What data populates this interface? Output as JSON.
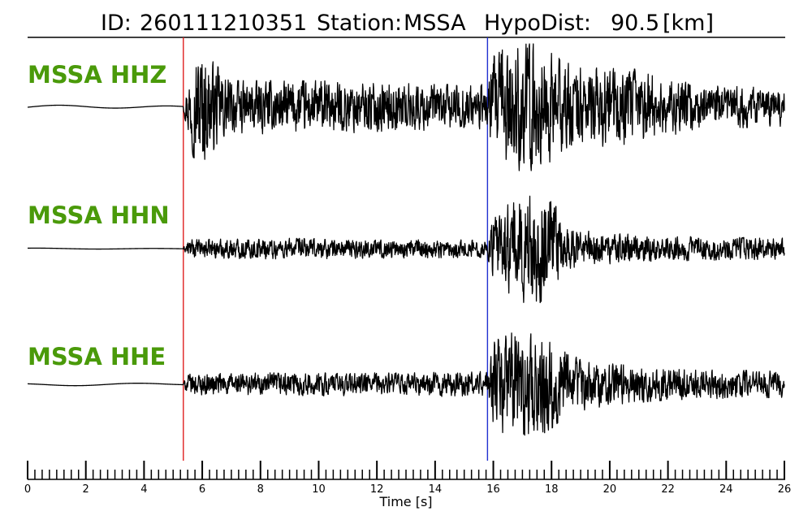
{
  "title": {
    "id_label": "ID:",
    "id_value": "260111210351",
    "station_label": "Station:",
    "station_value": "MSSA",
    "dist_label": "HypoDist:",
    "dist_value": "90.5",
    "dist_unit": "[km]"
  },
  "colors": {
    "channel_label": "#4a9a0a",
    "p_pick": "#e02020",
    "s_pick": "#2030d0",
    "trace": "#000000"
  },
  "chart_data": {
    "type": "line",
    "xlabel": "Time [s]",
    "xlim": [
      0,
      26
    ],
    "x_major_ticks": [
      0,
      2,
      4,
      6,
      8,
      10,
      12,
      14,
      16,
      18,
      20,
      22,
      24,
      26
    ],
    "x_minor_step": 0.25,
    "picks": [
      {
        "phase": "P",
        "time": 5.35
      },
      {
        "phase": "S",
        "time": 15.8
      }
    ],
    "series": [
      {
        "name": "MSSA HHZ",
        "amplitude_envelope": [
          [
            0,
            0.04
          ],
          [
            5.35,
            0.04
          ],
          [
            5.45,
            0.3
          ],
          [
            5.7,
            0.8
          ],
          [
            6.0,
            1.0
          ],
          [
            6.3,
            0.75
          ],
          [
            7.0,
            0.42
          ],
          [
            10,
            0.42
          ],
          [
            14,
            0.36
          ],
          [
            15.8,
            0.36
          ],
          [
            16.0,
            0.8
          ],
          [
            16.5,
            1.0
          ],
          [
            17.5,
            1.0
          ],
          [
            18.5,
            0.7
          ],
          [
            19.5,
            0.62
          ],
          [
            21,
            0.6
          ],
          [
            23,
            0.35
          ],
          [
            26,
            0.3
          ]
        ]
      },
      {
        "name": "MSSA HHN",
        "amplitude_envelope": [
          [
            0,
            0.01
          ],
          [
            5.35,
            0.01
          ],
          [
            5.5,
            0.15
          ],
          [
            8,
            0.18
          ],
          [
            15.8,
            0.15
          ],
          [
            16.0,
            0.5
          ],
          [
            16.5,
            0.75
          ],
          [
            17.3,
            1.0
          ],
          [
            18.0,
            0.95
          ],
          [
            18.4,
            0.35
          ],
          [
            20,
            0.26
          ],
          [
            23,
            0.2
          ],
          [
            26,
            0.18
          ]
        ]
      },
      {
        "name": "MSSA HHE",
        "amplitude_envelope": [
          [
            0,
            0.03
          ],
          [
            5.35,
            0.03
          ],
          [
            5.5,
            0.2
          ],
          [
            8,
            0.22
          ],
          [
            13,
            0.22
          ],
          [
            15.8,
            0.25
          ],
          [
            16.0,
            0.8
          ],
          [
            16.5,
            1.0
          ],
          [
            17.8,
            0.95
          ],
          [
            18.6,
            0.55
          ],
          [
            20,
            0.4
          ],
          [
            22,
            0.3
          ],
          [
            26,
            0.25
          ]
        ]
      }
    ]
  }
}
